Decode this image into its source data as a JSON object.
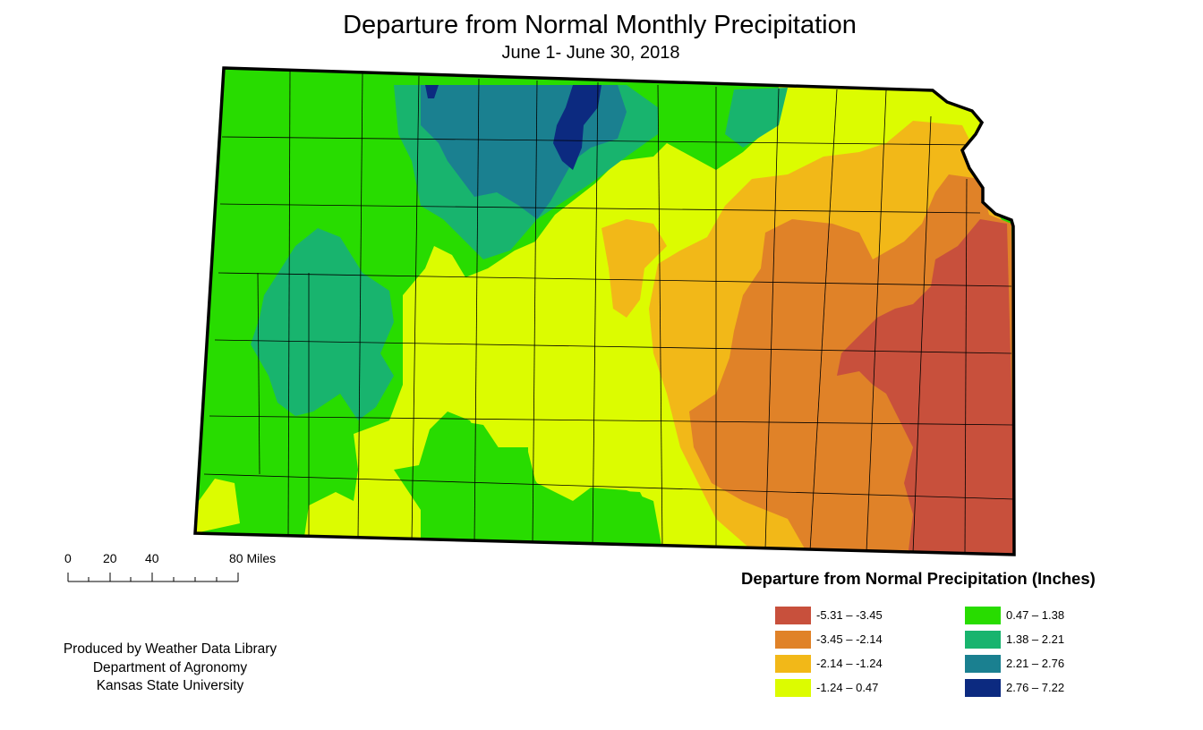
{
  "title": "Departure from Normal Monthly Precipitation",
  "subtitle": "June 1- June 30, 2018",
  "scale": {
    "labels": [
      "0",
      "20",
      "40",
      "80 Miles"
    ]
  },
  "credits": {
    "line1": "Produced by Weather Data Library",
    "line2": "Department of Agronomy",
    "line3": "Kansas State University"
  },
  "legend": {
    "title": "Departure from Normal Precipitation (Inches)",
    "items": [
      {
        "label": "-5.31 – -3.45",
        "color": "#c8503c"
      },
      {
        "label": "-3.45 – -2.14",
        "color": "#e08228"
      },
      {
        "label": "-2.14 – -1.24",
        "color": "#f2b818"
      },
      {
        "label": "-1.24 – 0.47",
        "color": "#dcfc00"
      },
      {
        "label": "0.47 – 1.38",
        "color": "#28dc00"
      },
      {
        "label": "1.38 – 2.21",
        "color": "#18b46e"
      },
      {
        "label": "2.21 – 2.76",
        "color": "#1a8090"
      },
      {
        "label": "2.76 – 7.22",
        "color": "#0c2a80"
      }
    ]
  }
}
